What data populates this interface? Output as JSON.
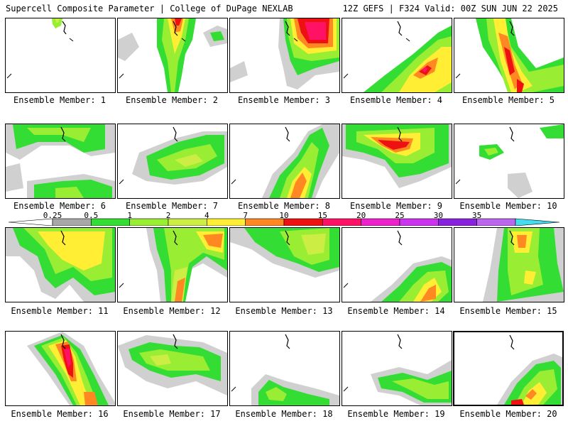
{
  "header": {
    "title": "Supercell Composite Parameter | College of DuPage NEXLAB",
    "run_info": "12Z GEFS | F324 Valid: 00Z SUN JUN 22 2025"
  },
  "colorbar": {
    "labels": [
      "0.25",
      "0.5",
      "1",
      "2",
      "4",
      "7",
      "10",
      "15",
      "20",
      "25",
      "30",
      "35"
    ],
    "colors": [
      "#d0d0d0",
      "#a8a8a8",
      "#33dd33",
      "#99ee33",
      "#ccee44",
      "#ffee33",
      "#ff8822",
      "#ee1111",
      "#ff1166",
      "#ee22cc",
      "#cc33ee",
      "#8822dd",
      "#bb66ee",
      "#44ddee"
    ]
  },
  "member_prefix": "Ensemble Member:",
  "members": [
    {
      "id": "1",
      "caption": "Ensemble Member: 1"
    },
    {
      "id": "2",
      "caption": "Ensemble Member: 2"
    },
    {
      "id": "3",
      "caption": "Ensemble Member: 3"
    },
    {
      "id": "4",
      "caption": "Ensemble Member: 4"
    },
    {
      "id": "5",
      "caption": "Ensemble Member: 5"
    },
    {
      "id": "6",
      "caption": "Ensemble Member: 6"
    },
    {
      "id": "7",
      "caption": "Ensemble Member: 7"
    },
    {
      "id": "8",
      "caption": "Ensemble Member: 8"
    },
    {
      "id": "9",
      "caption": "Ensemble Member: 9"
    },
    {
      "id": "10",
      "caption": "Ensemble Member: 10"
    },
    {
      "id": "11",
      "caption": "Ensemble Member: 11"
    },
    {
      "id": "12",
      "caption": "Ensemble Member: 12"
    },
    {
      "id": "13",
      "caption": "Ensemble Member: 13"
    },
    {
      "id": "14",
      "caption": "Ensemble Member: 14"
    },
    {
      "id": "15",
      "caption": "Ensemble Member: 15"
    },
    {
      "id": "16",
      "caption": "Ensemble Member: 16"
    },
    {
      "id": "17",
      "caption": "Ensemble Member: 17"
    },
    {
      "id": "18",
      "caption": "Ensemble Member: 18"
    },
    {
      "id": "19",
      "caption": "Ensemble Member: 19"
    },
    {
      "id": "20",
      "caption": "Ensemble Member: 20"
    }
  ],
  "selected_member": "20"
}
